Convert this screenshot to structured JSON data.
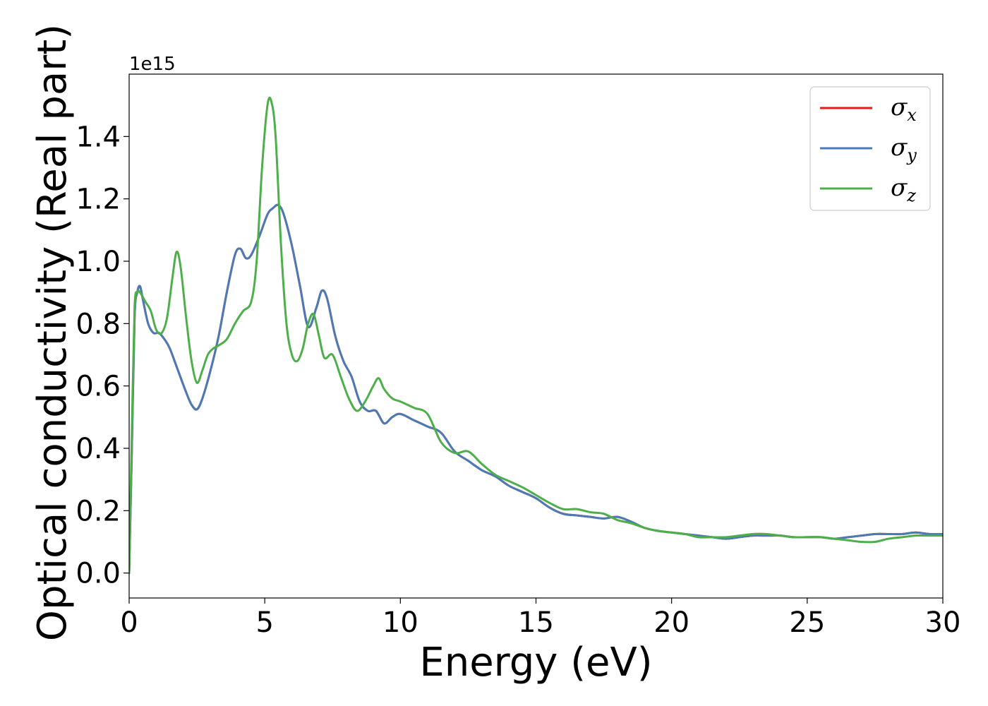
{
  "chart_data": {
    "type": "line",
    "xlabel": "Energy (eV)",
    "ylabel": "Optical conductivity (Real part)",
    "y_offset_label": "1e15",
    "xlim": [
      0,
      30
    ],
    "ylim": [
      -0.08,
      1.6
    ],
    "x_ticks": [
      0,
      5,
      10,
      15,
      20,
      25,
      30
    ],
    "x_tick_labels": [
      "0",
      "5",
      "10",
      "15",
      "20",
      "25",
      "30"
    ],
    "y_ticks": [
      0.0,
      0.2,
      0.4,
      0.6,
      0.8,
      1.0,
      1.2,
      1.4
    ],
    "y_tick_labels": [
      "0.0",
      "0.2",
      "0.4",
      "0.6",
      "0.8",
      "1.0",
      "1.2",
      "1.4"
    ],
    "grid": false,
    "legend_position": "top-right",
    "series": [
      {
        "name": "σx",
        "legend_base": "σ",
        "legend_sub": "x",
        "color": "#e41a1c",
        "x": [
          0,
          0.1,
          0.2,
          0.3,
          0.4,
          0.5,
          0.7,
          0.9,
          1.1,
          1.3,
          1.5,
          1.8,
          2.1,
          2.3,
          2.5,
          2.7,
          3.0,
          3.3,
          3.6,
          3.9,
          4.1,
          4.3,
          4.5,
          4.8,
          5.1,
          5.3,
          5.5,
          5.7,
          6.0,
          6.3,
          6.6,
          6.9,
          7.1,
          7.3,
          7.6,
          7.9,
          8.2,
          8.5,
          8.8,
          9.1,
          9.4,
          9.7,
          10.0,
          10.5,
          11.0,
          11.5,
          12.0,
          12.5,
          13.0,
          13.5,
          14.0,
          14.5,
          15.0,
          15.5,
          16.0,
          16.5,
          17.0,
          17.5,
          18.0,
          18.5,
          19.0,
          19.5,
          20.0,
          20.5,
          21.0,
          21.5,
          22.0,
          22.5,
          23.0,
          23.5,
          24.0,
          24.5,
          25.0,
          25.5,
          26.0,
          26.5,
          27.0,
          27.5,
          28.0,
          28.5,
          29.0,
          29.5,
          30.0
        ],
        "values": [
          0.0,
          0.4,
          0.82,
          0.9,
          0.92,
          0.88,
          0.8,
          0.77,
          0.77,
          0.75,
          0.72,
          0.65,
          0.58,
          0.54,
          0.525,
          0.56,
          0.65,
          0.76,
          0.9,
          1.02,
          1.04,
          1.01,
          1.02,
          1.08,
          1.15,
          1.17,
          1.18,
          1.15,
          1.05,
          0.92,
          0.79,
          0.85,
          0.905,
          0.88,
          0.76,
          0.68,
          0.63,
          0.55,
          0.52,
          0.52,
          0.48,
          0.5,
          0.51,
          0.49,
          0.47,
          0.45,
          0.39,
          0.36,
          0.33,
          0.31,
          0.28,
          0.26,
          0.24,
          0.21,
          0.19,
          0.185,
          0.18,
          0.175,
          0.18,
          0.165,
          0.145,
          0.135,
          0.13,
          0.125,
          0.12,
          0.115,
          0.11,
          0.115,
          0.12,
          0.12,
          0.12,
          0.115,
          0.115,
          0.115,
          0.11,
          0.115,
          0.12,
          0.125,
          0.125,
          0.125,
          0.13,
          0.125,
          0.125
        ]
      },
      {
        "name": "σy",
        "legend_base": "σ",
        "legend_sub": "y",
        "color": "#4a7bb7",
        "x": [
          0,
          0.1,
          0.2,
          0.3,
          0.4,
          0.5,
          0.7,
          0.9,
          1.1,
          1.3,
          1.5,
          1.8,
          2.1,
          2.3,
          2.5,
          2.7,
          3.0,
          3.3,
          3.6,
          3.9,
          4.1,
          4.3,
          4.5,
          4.8,
          5.1,
          5.3,
          5.5,
          5.7,
          6.0,
          6.3,
          6.6,
          6.9,
          7.1,
          7.3,
          7.6,
          7.9,
          8.2,
          8.5,
          8.8,
          9.1,
          9.4,
          9.7,
          10.0,
          10.5,
          11.0,
          11.5,
          12.0,
          12.5,
          13.0,
          13.5,
          14.0,
          14.5,
          15.0,
          15.5,
          16.0,
          16.5,
          17.0,
          17.5,
          18.0,
          18.5,
          19.0,
          19.5,
          20.0,
          20.5,
          21.0,
          21.5,
          22.0,
          22.5,
          23.0,
          23.5,
          24.0,
          24.5,
          25.0,
          25.5,
          26.0,
          26.5,
          27.0,
          27.5,
          28.0,
          28.5,
          29.0,
          29.5,
          30.0
        ],
        "values": [
          0.0,
          0.4,
          0.82,
          0.9,
          0.92,
          0.88,
          0.8,
          0.77,
          0.77,
          0.75,
          0.72,
          0.65,
          0.58,
          0.54,
          0.525,
          0.56,
          0.65,
          0.76,
          0.9,
          1.02,
          1.04,
          1.01,
          1.02,
          1.08,
          1.15,
          1.17,
          1.18,
          1.15,
          1.05,
          0.92,
          0.79,
          0.85,
          0.905,
          0.88,
          0.76,
          0.68,
          0.63,
          0.55,
          0.52,
          0.52,
          0.48,
          0.5,
          0.51,
          0.49,
          0.47,
          0.45,
          0.39,
          0.36,
          0.33,
          0.31,
          0.28,
          0.26,
          0.24,
          0.21,
          0.19,
          0.185,
          0.18,
          0.175,
          0.18,
          0.165,
          0.145,
          0.135,
          0.13,
          0.125,
          0.12,
          0.115,
          0.11,
          0.115,
          0.12,
          0.12,
          0.12,
          0.115,
          0.115,
          0.115,
          0.11,
          0.115,
          0.12,
          0.125,
          0.125,
          0.125,
          0.13,
          0.125,
          0.125
        ]
      },
      {
        "name": "σz",
        "legend_base": "σ",
        "legend_sub": "z",
        "color": "#4daf4a",
        "x": [
          0,
          0.1,
          0.2,
          0.3,
          0.4,
          0.6,
          0.8,
          1.0,
          1.2,
          1.4,
          1.6,
          1.75,
          1.9,
          2.1,
          2.3,
          2.5,
          2.7,
          2.9,
          3.1,
          3.3,
          3.6,
          3.9,
          4.2,
          4.5,
          4.7,
          4.9,
          5.1,
          5.25,
          5.4,
          5.6,
          5.8,
          6.0,
          6.2,
          6.4,
          6.6,
          6.8,
          7.0,
          7.2,
          7.5,
          7.8,
          8.1,
          8.4,
          8.7,
          9.0,
          9.2,
          9.4,
          9.7,
          10.0,
          10.5,
          11.0,
          11.5,
          12.0,
          12.5,
          13.0,
          13.5,
          14.0,
          14.5,
          15.0,
          15.5,
          16.0,
          16.5,
          17.0,
          17.5,
          18.0,
          18.5,
          19.0,
          19.5,
          20.0,
          20.5,
          21.0,
          21.5,
          22.0,
          22.5,
          23.0,
          23.5,
          24.0,
          24.5,
          25.0,
          25.5,
          26.0,
          26.5,
          27.0,
          27.5,
          28.0,
          28.5,
          29.0,
          29.5,
          30.0
        ],
        "values": [
          0.0,
          0.45,
          0.85,
          0.9,
          0.9,
          0.87,
          0.84,
          0.78,
          0.77,
          0.82,
          0.95,
          1.03,
          0.98,
          0.82,
          0.68,
          0.61,
          0.65,
          0.7,
          0.72,
          0.73,
          0.75,
          0.8,
          0.84,
          0.87,
          1.0,
          1.3,
          1.5,
          1.51,
          1.4,
          1.05,
          0.8,
          0.7,
          0.68,
          0.72,
          0.8,
          0.83,
          0.76,
          0.69,
          0.7,
          0.63,
          0.56,
          0.52,
          0.55,
          0.6,
          0.625,
          0.59,
          0.56,
          0.55,
          0.53,
          0.51,
          0.42,
          0.385,
          0.39,
          0.35,
          0.315,
          0.295,
          0.275,
          0.25,
          0.225,
          0.205,
          0.205,
          0.195,
          0.19,
          0.17,
          0.16,
          0.145,
          0.135,
          0.13,
          0.125,
          0.115,
          0.115,
          0.115,
          0.12,
          0.125,
          0.125,
          0.12,
          0.115,
          0.115,
          0.115,
          0.11,
          0.105,
          0.1,
          0.1,
          0.11,
          0.115,
          0.12,
          0.12,
          0.12
        ]
      }
    ]
  }
}
